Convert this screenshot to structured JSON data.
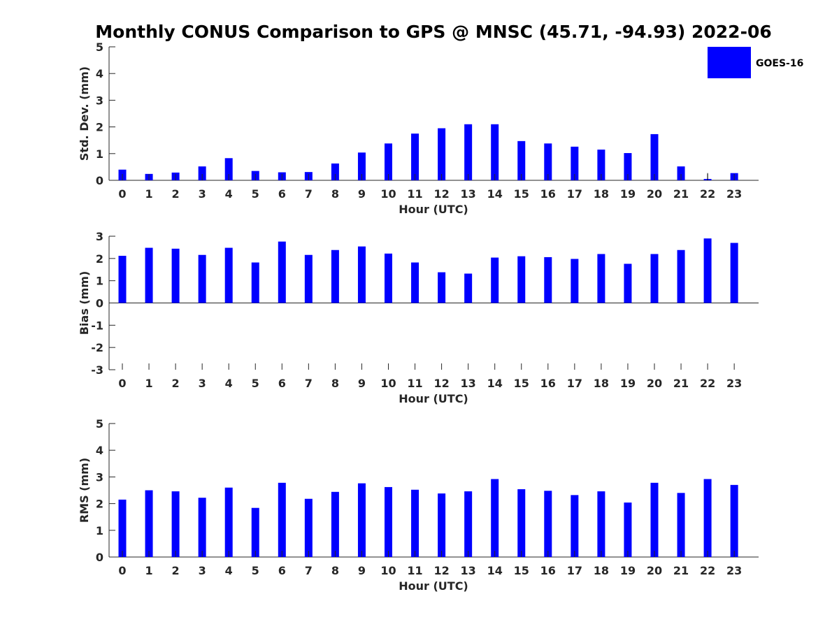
{
  "title": "Monthly CONUS Comparison to GPS @ MNSC (45.71, -94.93) 2022-06",
  "legend": {
    "label": "GOES-16",
    "color": "#0000ff"
  },
  "bar_color": "#0000ff",
  "chart_data": [
    {
      "type": "bar",
      "categories": [
        "0",
        "1",
        "2",
        "3",
        "4",
        "5",
        "6",
        "7",
        "8",
        "9",
        "10",
        "11",
        "12",
        "13",
        "14",
        "15",
        "16",
        "17",
        "18",
        "19",
        "20",
        "21",
        "22",
        "23"
      ],
      "values": [
        0.4,
        0.24,
        0.29,
        0.52,
        0.83,
        0.35,
        0.3,
        0.31,
        0.63,
        1.04,
        1.38,
        1.75,
        1.95,
        2.1,
        2.1,
        1.47,
        1.38,
        1.26,
        1.15,
        1.02,
        1.73,
        0.52,
        0.05,
        0.27
      ],
      "error_bars": {
        "22": 0.22
      },
      "xlabel": "Hour (UTC)",
      "ylabel": "Std. Dev. (mm)",
      "ylim": [
        0,
        5
      ],
      "yticks": [
        "0",
        "1",
        "2",
        "3",
        "4",
        "5"
      ],
      "yticks_values": [
        0,
        1,
        2,
        3,
        4,
        5
      ],
      "legend": "top-right"
    },
    {
      "type": "bar",
      "categories": [
        "0",
        "1",
        "2",
        "3",
        "4",
        "5",
        "6",
        "7",
        "8",
        "9",
        "10",
        "11",
        "12",
        "13",
        "14",
        "15",
        "16",
        "17",
        "18",
        "19",
        "20",
        "21",
        "22",
        "23"
      ],
      "values": [
        2.12,
        2.48,
        2.44,
        2.16,
        2.48,
        1.82,
        2.76,
        2.16,
        2.38,
        2.54,
        2.22,
        1.82,
        1.38,
        1.32,
        2.04,
        2.1,
        2.06,
        1.98,
        2.2,
        1.76,
        2.2,
        2.38,
        2.9,
        2.7
      ],
      "xlabel": "Hour (UTC)",
      "ylabel": "Bias (mm)",
      "ylim": [
        -3,
        3
      ],
      "yticks": [
        "-3",
        "-2",
        "-1",
        "0",
        "1",
        "2",
        "3"
      ],
      "yticks_values": [
        -3,
        -2,
        -1,
        0,
        1,
        2,
        3
      ]
    },
    {
      "type": "bar",
      "categories": [
        "0",
        "1",
        "2",
        "3",
        "4",
        "5",
        "6",
        "7",
        "8",
        "9",
        "10",
        "11",
        "12",
        "13",
        "14",
        "15",
        "16",
        "17",
        "18",
        "19",
        "20",
        "21",
        "22",
        "23"
      ],
      "values": [
        2.15,
        2.5,
        2.46,
        2.22,
        2.6,
        1.84,
        2.78,
        2.18,
        2.44,
        2.76,
        2.62,
        2.52,
        2.38,
        2.46,
        2.92,
        2.54,
        2.48,
        2.32,
        2.46,
        2.04,
        2.78,
        2.4,
        2.92,
        2.7
      ],
      "xlabel": "Hour (UTC)",
      "ylabel": "RMS (mm)",
      "ylim": [
        0,
        5
      ],
      "yticks": [
        "0",
        "1",
        "2",
        "3",
        "4",
        "5"
      ],
      "yticks_values": [
        0,
        1,
        2,
        3,
        4,
        5
      ]
    }
  ]
}
